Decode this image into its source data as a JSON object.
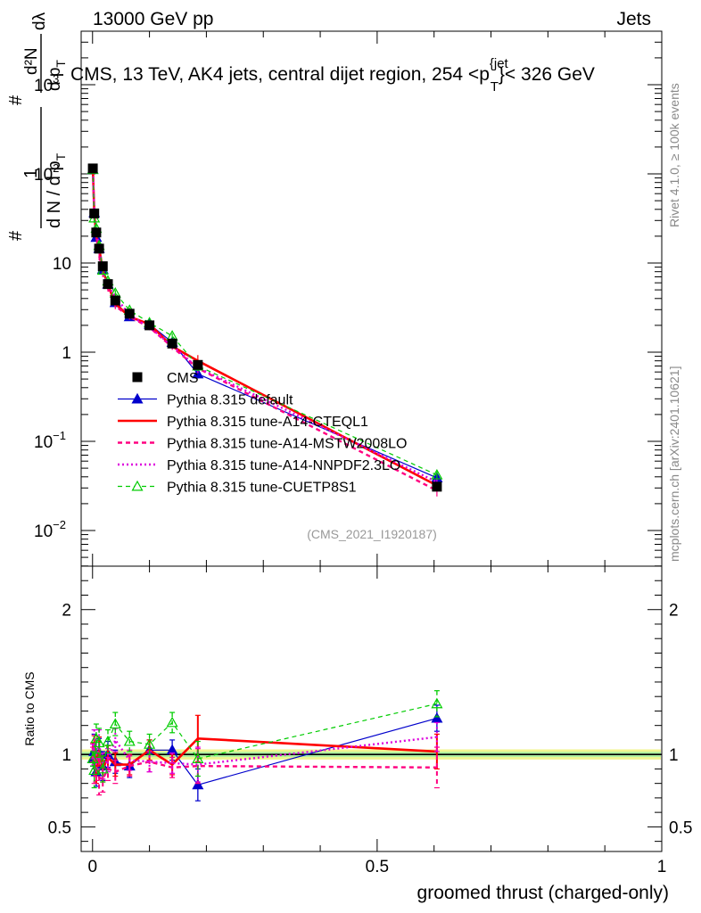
{
  "header": {
    "left": "13000 GeV pp",
    "right": "Jets"
  },
  "side_labels": {
    "rivet": "Rivet 4.1.0, ≥ 100k events",
    "mcplots": "mcplots.cern.ch [arXiv:2401.10621]"
  },
  "chart_data": {
    "type": "line",
    "title": "CMS, 13 TeV, AK4 jets, central dijet region, 254 < p_T^{jet} < 326 GeV",
    "title_parts": {
      "main": "CMS, 13 TeV, AK4 jets, central dijet region, 254 <p",
      "sup": "{jet",
      "sub": "T",
      "tail": "}< 326 GeV"
    },
    "analysis_id": "(CMS_2021_I1920187)",
    "xlabel": "groomed thrust (charged-only)",
    "ylabel_main": {
      "num_hash": "#",
      "num": "1",
      "den": "d N / d p",
      "den_sub": "T",
      "rhs_hash": "#",
      "rhs_num": "d²N",
      "rhs_den": "d p",
      "rhs_den_sub": "T",
      "rhs_dl": "dλ"
    },
    "ylabel_ratio": "Ratio to CMS",
    "xlim": [
      -0.02,
      1.0
    ],
    "ylim_main_log10": [
      -2.4,
      3.6
    ],
    "ylim_ratio": [
      0.33,
      2.3
    ],
    "x_ticks": [
      {
        "v": 0,
        "label": "0"
      },
      {
        "v": 0.5,
        "label": "0.5"
      },
      {
        "v": 1,
        "label": "1"
      }
    ],
    "y_ticks_main": [
      {
        "exp": -2,
        "label": "10",
        "sup": "−2"
      },
      {
        "exp": -1,
        "label": "10",
        "sup": "−1"
      },
      {
        "exp": 0,
        "label": "1",
        "sup": ""
      },
      {
        "exp": 1,
        "label": "10",
        "sup": ""
      },
      {
        "exp": 2,
        "label": "10",
        "sup": "2"
      },
      {
        "exp": 3,
        "label": "10",
        "sup": "3"
      }
    ],
    "y_ticks_ratio": [
      {
        "v": 0.5,
        "label": "0.5"
      },
      {
        "v": 1,
        "label": "1"
      },
      {
        "v": 2,
        "label": "2"
      }
    ],
    "x": [
      0.0005,
      0.003,
      0.0065,
      0.0115,
      0.018,
      0.027,
      0.04,
      0.065,
      0.1,
      0.14,
      0.185,
      0.605
    ],
    "series": [
      {
        "name": "CMS",
        "color": "#000000",
        "style": "data",
        "values": [
          115,
          36,
          22,
          14.5,
          9.2,
          5.8,
          3.8,
          2.7,
          2.0,
          1.25,
          0.72,
          0.031
        ],
        "ratio": [
          1,
          1,
          1,
          1,
          1,
          1,
          1,
          1,
          1,
          1,
          1,
          1
        ]
      },
      {
        "name": "Pythia 8.315 default",
        "color": "#0000cc",
        "style": "solid",
        "marker": "filled-triangle",
        "values": [
          112,
          36.6,
          19.4,
          14.6,
          8.5,
          5.8,
          3.6,
          2.5,
          2.06,
          1.29,
          0.57,
          0.039
        ],
        "ratio": [
          0.97,
          1.02,
          0.88,
          1.01,
          0.92,
          1.0,
          0.95,
          0.92,
          1.03,
          1.03,
          0.79,
          1.25
        ],
        "ratio_err": [
          0.05,
          0.12,
          0.1,
          0.1,
          0.1,
          0.09,
          0.08,
          0.08,
          0.07,
          0.07,
          0.11,
          0.09
        ]
      },
      {
        "name": "Pythia 8.315 tune-A14-CTEQL1",
        "color": "#ff0000",
        "style": "solid",
        "marker": "none",
        "values": [
          118,
          37,
          20,
          14.8,
          8.3,
          5.7,
          3.5,
          2.5,
          2.06,
          1.16,
          0.8,
          0.032
        ],
        "ratio": [
          1.03,
          1.03,
          0.9,
          1.02,
          0.9,
          0.98,
          0.93,
          0.93,
          1.03,
          0.93,
          1.11,
          1.02
        ],
        "ratio_err": [
          0.05,
          0.1,
          0.1,
          0.1,
          0.09,
          0.08,
          0.08,
          0.07,
          0.07,
          0.07,
          0.16,
          0.12
        ]
      },
      {
        "name": "Pythia 8.315 tune-A14-MSTW2008LO",
        "color": "#ff0080",
        "style": "dashed",
        "marker": "none",
        "values": [
          115,
          33,
          20,
          12.2,
          7.6,
          5.2,
          3.3,
          2.5,
          1.9,
          1.14,
          0.66,
          0.028
        ],
        "ratio": [
          1.0,
          0.92,
          0.92,
          0.84,
          0.83,
          0.9,
          0.88,
          0.92,
          0.95,
          0.91,
          0.92,
          0.91
        ],
        "ratio_err": [
          0.05,
          0.12,
          0.1,
          0.12,
          0.09,
          0.08,
          0.08,
          0.07,
          0.07,
          0.07,
          0.12,
          0.14
        ]
      },
      {
        "name": "Pythia 8.315 tune-A14-NNPDF2.3LO",
        "color": "#dd00dd",
        "style": "dotted",
        "marker": "none",
        "values": [
          117,
          38,
          22,
          15.5,
          8.5,
          5.6,
          4.2,
          2.6,
          1.9,
          1.18,
          0.67,
          0.035
        ],
        "ratio": [
          1.02,
          1.05,
          1.0,
          1.07,
          0.92,
          0.96,
          1.1,
          0.96,
          0.95,
          0.94,
          0.93,
          1.12
        ],
        "ratio_err": [
          0.05,
          0.12,
          0.1,
          0.1,
          0.09,
          0.08,
          0.08,
          0.07,
          0.07,
          0.07,
          0.12,
          0.1
        ]
      },
      {
        "name": "Pythia 8.315 tune-CUETP8S1",
        "color": "#00cc00",
        "style": "dashed",
        "marker": "open-triangle",
        "values": [
          112,
          32,
          24.5,
          15.7,
          8.3,
          6.3,
          4.6,
          2.95,
          2.14,
          1.52,
          0.7,
          0.042
        ],
        "ratio": [
          0.97,
          0.89,
          1.11,
          1.08,
          0.9,
          1.09,
          1.21,
          1.09,
          1.07,
          1.22,
          0.97,
          1.35
        ],
        "ratio_err": [
          0.05,
          0.12,
          0.1,
          0.1,
          0.09,
          0.08,
          0.08,
          0.07,
          0.07,
          0.07,
          0.12,
          0.09
        ]
      }
    ],
    "cms_band_rel": [
      0.03,
      0.05,
      0.05,
      0.05,
      0.05,
      0.04,
      0.04,
      0.04,
      0.03,
      0.03,
      0.04,
      0.05
    ],
    "legend_position": "lower-left",
    "grid": false
  }
}
